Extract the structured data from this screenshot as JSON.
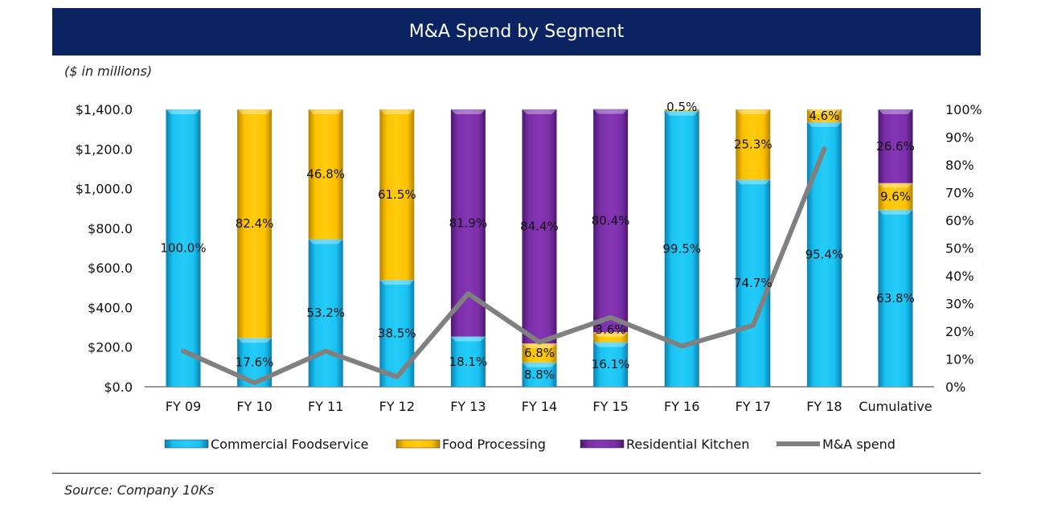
{
  "colors": {
    "header_bg": "#0b2461",
    "commercial": "#19c2f2",
    "food": "#fcc200",
    "residential": "#7a2fa8",
    "line": "#808080"
  },
  "chart_data": {
    "type": "bar",
    "stacked": true,
    "title": "M&A Spend by Segment",
    "units_note": "($ in millions)",
    "categories": [
      "FY 09",
      "FY 10",
      "FY 11",
      "FY 12",
      "FY 13",
      "FY 14",
      "FY 15",
      "FY 16",
      "FY 17",
      "FY 18",
      "Cumulative"
    ],
    "left_axis": {
      "ylim": [
        0,
        1400
      ],
      "ticks": [
        0,
        200,
        400,
        600,
        800,
        1000,
        1200,
        1400
      ],
      "tick_labels": [
        "$0.0",
        "$200.0",
        "$400.0",
        "$600.0",
        "$800.0",
        "$1,000.0",
        "$1,200.0",
        "$1,400.0"
      ]
    },
    "right_axis": {
      "ylim": [
        0,
        100
      ],
      "ticks": [
        0,
        10,
        20,
        30,
        40,
        50,
        60,
        70,
        80,
        90,
        100
      ],
      "tick_labels": [
        "0%",
        "10%",
        "20%",
        "30%",
        "40%",
        "50%",
        "60%",
        "70%",
        "80%",
        "90%",
        "100%"
      ]
    },
    "series": [
      {
        "name": "Commercial Foodservice",
        "type": "bar",
        "axis": "right",
        "color_key": "commercial",
        "values": [
          100.0,
          17.6,
          53.2,
          38.5,
          18.1,
          8.8,
          16.1,
          99.5,
          74.7,
          95.4,
          63.8
        ],
        "labels": [
          "100.0%",
          "17.6%",
          "53.2%",
          "38.5%",
          "18.1%",
          "8.8%",
          "16.1%",
          "99.5%",
          "74.7%",
          "95.4%",
          "63.8%"
        ]
      },
      {
        "name": "Food Processing",
        "type": "bar",
        "axis": "right",
        "color_key": "food",
        "values": [
          0,
          82.4,
          46.8,
          61.5,
          0,
          6.8,
          3.6,
          0.5,
          25.3,
          4.6,
          9.6
        ],
        "labels": [
          "",
          "82.4%",
          "46.8%",
          "61.5%",
          "",
          "6.8%",
          "3.6%",
          "0.5%",
          "25.3%",
          "4.6%",
          "9.6%"
        ]
      },
      {
        "name": "Residential Kitchen",
        "type": "bar",
        "axis": "right",
        "color_key": "residential",
        "values": [
          0,
          0,
          0,
          0,
          81.9,
          84.4,
          80.4,
          0,
          0,
          0,
          26.6
        ],
        "labels": [
          "",
          "",
          "",
          "",
          "81.9%",
          "84.4%",
          "80.4%",
          "",
          "",
          "",
          "26.6%"
        ]
      },
      {
        "name": "M&A spend",
        "type": "line",
        "axis": "left",
        "color_key": "line",
        "values": [
          180,
          20,
          180,
          50,
          470,
          225,
          350,
          205,
          310,
          1200,
          null
        ]
      }
    ],
    "legend_position": "bottom"
  },
  "footer": {
    "source": "Source: Company 10Ks"
  }
}
